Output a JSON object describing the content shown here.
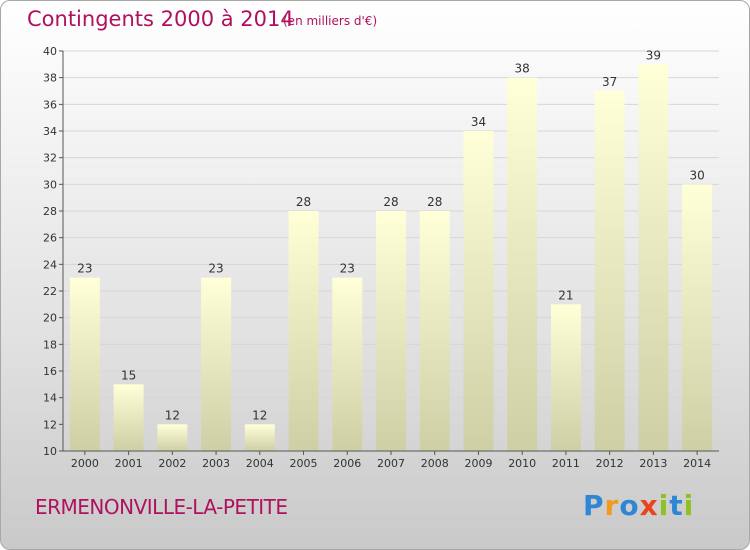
{
  "header": {
    "title": "Contingents 2000 à 2014",
    "subtitle": "(en milliers d'€)"
  },
  "footer": {
    "commune": "ERMENONVILLE-LA-PETITE",
    "brand_letters": [
      {
        "char": "P",
        "color": "#2e86d4"
      },
      {
        "char": "r",
        "color": "#f29a1c"
      },
      {
        "char": "o",
        "color": "#2e86d4"
      },
      {
        "char": "x",
        "color": "#e8451e"
      },
      {
        "char": "i",
        "color": "#8dc21f"
      },
      {
        "char": "t",
        "color": "#2e86d4"
      },
      {
        "char": "i",
        "color": "#8dc21f"
      }
    ]
  },
  "chart_data": {
    "type": "bar",
    "title": "Contingents 2000 à 2014",
    "subtitle": "(en milliers d'€)",
    "categories": [
      "2000",
      "2001",
      "2002",
      "2003",
      "2004",
      "2005",
      "2006",
      "2007",
      "2008",
      "2009",
      "2010",
      "2011",
      "2012",
      "2013",
      "2014"
    ],
    "values": [
      23,
      15,
      12,
      23,
      12,
      28,
      23,
      28,
      28,
      34,
      38,
      21,
      37,
      39,
      30
    ],
    "ylim": [
      10,
      40
    ],
    "yticks": [
      10,
      12,
      14,
      16,
      18,
      20,
      22,
      24,
      26,
      28,
      30,
      32,
      34,
      36,
      38,
      40
    ],
    "grid": true,
    "data_labels": true,
    "bar_color_top": "#ffffd8",
    "bar_color_bottom": "#cfcfa6"
  }
}
